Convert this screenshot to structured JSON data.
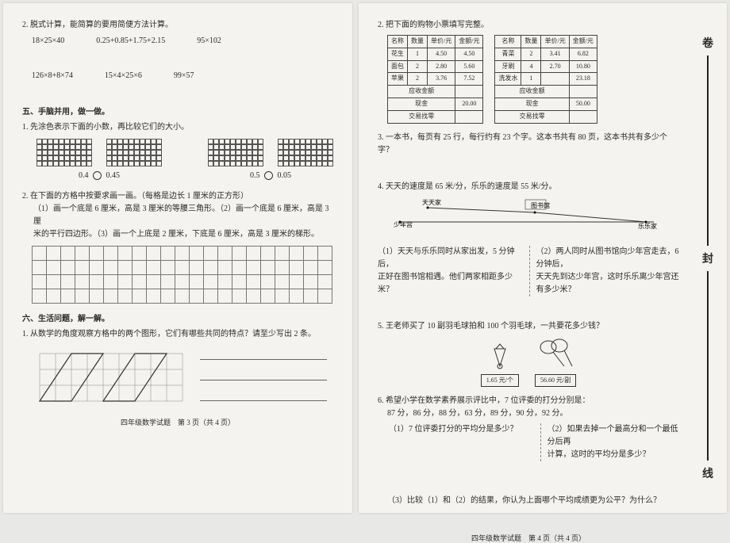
{
  "left": {
    "q2_head": "2. 脱式计算，能简算的要用简便方法计算。",
    "exprs1": [
      "18×25×40",
      "0.25+0.85+1.75+2.15",
      "95×102"
    ],
    "exprs2": [
      "126×8+8×74",
      "15×4×25×6",
      "99×57"
    ],
    "sec5": "五、手脑并用，做一做。",
    "q5_1": "1. 先涂色表示下面的小数，再比较它们的大小。",
    "cmp1a": "0.4",
    "cmp1b": "0.45",
    "cmp2a": "0.5",
    "cmp2b": "0.05",
    "q5_2": "2. 在下面的方格中按要求画一画。（每格是边长 1 厘米的正方形）",
    "q5_2a": "（1）画一个底是 6 厘米，高是 3 厘米的等腰三角形。（2）画一个底是 6 厘米，高是 3 厘",
    "q5_2b": "米的平行四边形。（3）画一个上底是 2 厘米，下底是 6 厘米，高是 3 厘米的梯形。",
    "sec6": "六、生活问题，解一解。",
    "q6_1": "1. 从数学的角度观察方格中的两个图形，它们有哪些共同的特点？请至少写出 2 条。",
    "footer": "四年级数学试题　第 3 页（共 4 页）"
  },
  "right": {
    "q2_head": "2. 把下面的购物小票填写完整。",
    "t_headers": [
      "名称",
      "数量",
      "单价/元",
      "金额/元"
    ],
    "t1_rows": [
      [
        "花生",
        "1",
        "4.50",
        "4.50"
      ],
      [
        "面包",
        "2",
        "2.80",
        "5.60"
      ],
      [
        "苹果",
        "2",
        "3.76",
        "7.52"
      ]
    ],
    "t1_sum": "应收金额",
    "t1_cash": "现金",
    "t1_cash_v": "20.00",
    "t1_chg": "交易找零",
    "t2_rows": [
      [
        "青菜",
        "2",
        "3.41",
        "6.82"
      ],
      [
        "牙刷",
        "4",
        "2.70",
        "10.80"
      ],
      [
        "洗发水",
        "1",
        "",
        "23.18"
      ]
    ],
    "t2_cash_v": "50.00",
    "q3": "3. 一本书，每页有 25 行，每行约有 23 个字。这本书共有 80 页，这本书共有多少个字？",
    "q4": "4. 天天的速度是 65 米/分，乐乐的速度是 55 米/分。",
    "dia_a": "天天家",
    "dia_b": "图书馆",
    "dia_c": "乐乐家",
    "dia_d": "少年宫",
    "q4_1a": "（1）天天与乐乐同时从家出发，5 分钟后，",
    "q4_1b": "正好在图书馆相遇。他们两家相距多少米？",
    "q4_2a": "（2）两人同时从图书馆向少年宫走去，6 分钟后，",
    "q4_2b": "天天先到达少年宫，这时乐乐离少年宫还有多少米？",
    "q5": "5. 王老师买了 10 副羽毛球拍和 100 个羽毛球，一共要花多少钱？",
    "price1": "1.65 元/个",
    "price2": "56.60 元/副",
    "q6": "6. 希望小学在数学素养展示评比中，7 位评委的打分分别是：",
    "scores": "87 分，86 分，88 分，63 分，89 分，90 分，92 分。",
    "q6_1": "（1）7 位评委打分的平均分是多少？",
    "q6_2a": "（2）如果去掉一个最高分和一个最低分后再",
    "q6_2b": "计算，这时的平均分是多少？",
    "q6_3": "（3）比较（1）和（2）的结果，你认为上面哪个平均成绩更为公平？为什么？",
    "footer": "四年级数学试题　第 4 页（共 4 页）",
    "tabs": [
      "卷",
      "封",
      "线"
    ]
  }
}
